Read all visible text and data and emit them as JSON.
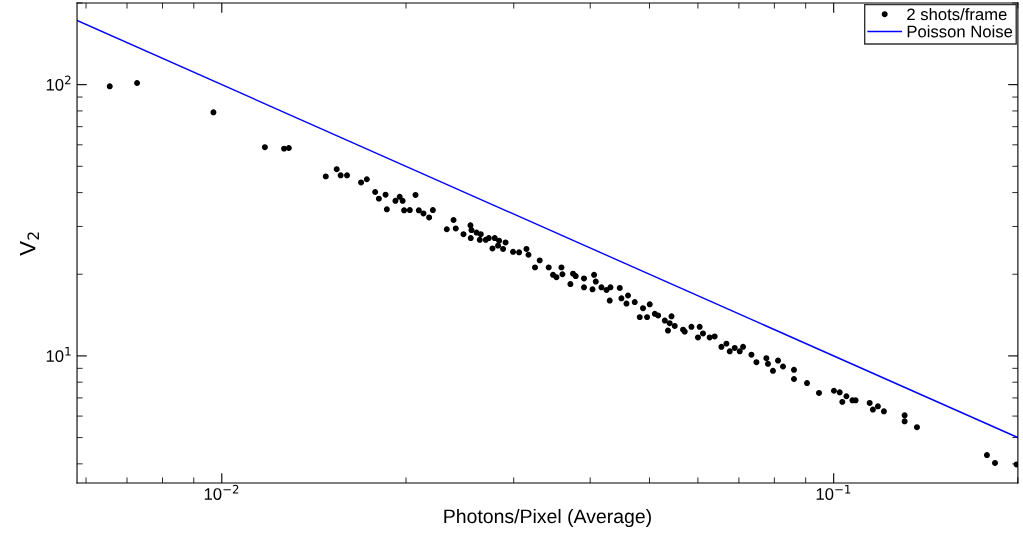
{
  "chart_data": {
    "type": "scatter",
    "xlabel": "Photons/Pixel (Average)",
    "ylabel": "V$_{2}$",
    "log": "xy",
    "grid": false,
    "legend": "top right",
    "xlim": [
      0.0058,
      0.2
    ],
    "ylim": [
      3.4,
      200
    ],
    "xticks": [
      {
        "value": 0.01,
        "label": "10$^{−2}$"
      },
      {
        "value": 0.1,
        "label": "10$^{−1}$"
      }
    ],
    "yticks": [
      {
        "value": 10,
        "label": "10$^{1}$"
      },
      {
        "value": 100,
        "label": "10$^{2}$"
      }
    ],
    "series": [
      {
        "name": "2 shots/frame",
        "marker": "circle",
        "color": "#000000",
        "x": [
          0.00656,
          0.00727,
          0.00969,
          0.01176,
          0.01264,
          0.01287,
          0.01479,
          0.01541,
          0.01564,
          0.01602,
          0.01689,
          0.01726,
          0.01781,
          0.01806,
          0.01852,
          0.01861,
          0.01922,
          0.01953,
          0.01975,
          0.01986,
          0.02029,
          0.02073,
          0.02099,
          0.02136,
          0.02182,
          0.02213,
          0.02332,
          0.02392,
          0.02412,
          0.02483,
          0.02549,
          0.02559,
          0.02552,
          0.02608,
          0.0265,
          0.0264,
          0.027,
          0.02731,
          0.02793,
          0.02769,
          0.02839,
          0.02828,
          0.02882,
          0.02909,
          0.02992,
          0.03061,
          0.03147,
          0.03171,
          0.0325,
          0.03308,
          0.03422,
          0.03478,
          0.03523,
          0.0359,
          0.03603,
          0.03713,
          0.0375,
          0.03788,
          0.03908,
          0.03908,
          0.04035,
          0.04059,
          0.04085,
          0.04173,
          0.04253,
          0.04317,
          0.04305,
          0.04471,
          0.04499,
          0.04612,
          0.04585,
          0.0473,
          0.0482,
          0.0488,
          0.05005,
          0.04955,
          0.05101,
          0.05165,
          0.05297,
          0.05432,
          0.05395,
          0.0536,
          0.05498,
          0.05673,
          0.05709,
          0.05855,
          0.06039,
          0.06001,
          0.06115,
          0.06271,
          0.0639,
          0.06554,
          0.06679,
          0.06763,
          0.06891,
          0.07022,
          0.0711,
          0.07338,
          0.07477,
          0.07762,
          0.07809,
          0.07957,
          0.0811,
          0.08264,
          0.08612,
          0.08612,
          0.09045,
          0.09462,
          0.1001,
          0.1023,
          0.1033,
          0.1049,
          0.1073,
          0.1086,
          0.1145,
          0.1159,
          0.1181,
          0.1208,
          0.1306,
          0.1306,
          0.1368,
          0.178,
          0.1835,
          0.199
        ],
        "values": [
          98.6,
          101.4,
          79.1,
          58.8,
          58.1,
          58.4,
          45.9,
          48.8,
          46.3,
          46.3,
          43.6,
          44.8,
          40.2,
          38.0,
          39.3,
          34.7,
          37.3,
          38.6,
          37.3,
          34.4,
          34.5,
          39.2,
          34.4,
          33.5,
          32.4,
          34.5,
          29.3,
          31.7,
          29.5,
          28.1,
          30.3,
          29.1,
          27.2,
          28.5,
          28.1,
          26.8,
          26.8,
          27.2,
          27.2,
          24.9,
          26.6,
          25.5,
          24.8,
          26.2,
          24.2,
          24.1,
          24.8,
          23.6,
          21.2,
          22.5,
          21.2,
          19.9,
          19.5,
          21.2,
          20.0,
          18.4,
          20.1,
          19.7,
          19.3,
          17.9,
          17.6,
          19.9,
          18.8,
          17.9,
          17.5,
          17.9,
          16.0,
          17.8,
          16.3,
          16.7,
          15.6,
          15.8,
          13.9,
          15.0,
          15.5,
          13.9,
          14.3,
          14.1,
          13.5,
          14.0,
          13.2,
          12.4,
          12.9,
          12.5,
          12.3,
          12.8,
          12.8,
          11.7,
          12.1,
          11.7,
          11.8,
          10.8,
          11.1,
          10.4,
          10.7,
          10.4,
          10.8,
          10.1,
          9.48,
          9.81,
          9.35,
          8.81,
          9.61,
          9.14,
          8.89,
          8.22,
          7.94,
          7.3,
          7.44,
          7.34,
          6.77,
          7.1,
          6.86,
          6.86,
          6.71,
          6.34,
          6.52,
          6.25,
          6.04,
          5.74,
          5.46,
          4.31,
          4.03,
          3.98
        ]
      },
      {
        "name": "Poisson Noise",
        "type": "line",
        "line_style": "solid",
        "color": "#0000ff",
        "x": [
          0.0058,
          0.2
        ],
        "values": [
          172.4,
          5
        ]
      }
    ]
  }
}
